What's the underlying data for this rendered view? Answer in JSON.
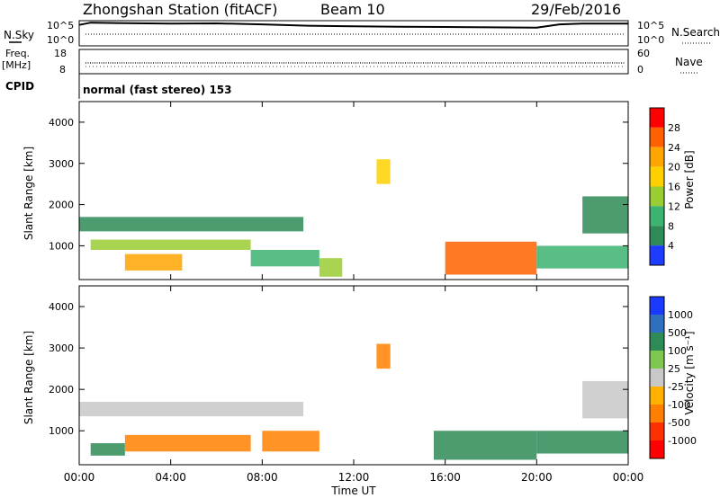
{
  "header": {
    "title": "Zhongshan Station (fitACF)",
    "beam": "Beam 10",
    "date": "29/Feb/2016"
  },
  "top_panels": {
    "nsky": {
      "label": "N.Sky",
      "ticks_left": [
        "10^5",
        "10^0"
      ],
      "ticks_right": [
        "10^5",
        "10^0"
      ],
      "right_label": "N.Search"
    },
    "freq": {
      "label_line1": "Freq.",
      "label_line2": "[MHz]",
      "ticks_left": [
        "18",
        "8"
      ],
      "ticks_right": [
        "60",
        "0"
      ],
      "right_label": "Nave"
    },
    "cpid": {
      "label": "CPID",
      "text": "normal (fast stereo) 153"
    }
  },
  "power_panel": {
    "ylabel": "Slant Range [km]",
    "yticks": [
      "4000",
      "3000",
      "2000",
      "1000"
    ],
    "colorbar_label": "Power [dB]",
    "colorbar_ticks": [
      "28",
      "24",
      "20",
      "16",
      "12",
      "8",
      "4"
    ],
    "colorbar_colors": [
      "#ff0000",
      "#ff6000",
      "#ffa500",
      "#ffd000",
      "#9acd32",
      "#3cb371",
      "#2e8b57",
      "#1e3cff"
    ]
  },
  "velocity_panel": {
    "ylabel": "Slant Range [km]",
    "yticks": [
      "4000",
      "3000",
      "2000",
      "1000"
    ],
    "colorbar_label": "Velocity [m s⁻¹]",
    "colorbar_ticks": [
      "1000",
      "500",
      "100",
      "25",
      "-25",
      "-100",
      "-500",
      "-1000"
    ],
    "colorbar_colors": [
      "#1a3aff",
      "#2f6fbf",
      "#2e8b57",
      "#7ec850",
      "#c8c8c8",
      "#ffb000",
      "#ff8000",
      "#ff3000",
      "#ff0000"
    ]
  },
  "xaxis": {
    "label": "Time UT",
    "ticks": [
      "00:00",
      "04:00",
      "08:00",
      "12:00",
      "16:00",
      "20:00",
      "00:00"
    ]
  },
  "chart_data": [
    {
      "type": "line",
      "name_label": "N.Sky",
      "x_unit": "hours UT",
      "y_scale": "log",
      "ylim": [
        1,
        100000
      ],
      "series": [
        {
          "x": [
            0,
            0.5,
            2,
            4,
            6,
            8,
            10,
            12,
            14,
            16,
            18,
            20,
            21,
            22,
            24
          ],
          "values": [
            30000,
            90000,
            70000,
            60000,
            65000,
            40000,
            20000,
            15000,
            12000,
            11000,
            9000,
            8000,
            40000,
            60000,
            60000
          ]
        }
      ]
    },
    {
      "type": "scatter",
      "name_label": "Freq.",
      "x_unit": "hours UT",
      "ylim": [
        8,
        18
      ],
      "series": [
        {
          "x": [
            0,
            4,
            8,
            12,
            16,
            20,
            24
          ],
          "values": [
            12,
            12,
            12,
            12,
            12,
            12,
            12
          ]
        }
      ]
    },
    {
      "type": "heatmap",
      "title": "Power [dB]",
      "xlabel": "Time UT",
      "ylabel": "Slant Range [km]",
      "xlim": [
        0,
        24
      ],
      "ylim": [
        180,
        4500
      ],
      "zlim": [
        0,
        30
      ],
      "regions": [
        {
          "t": [
            0,
            9.8
          ],
          "range": [
            1350,
            1700
          ],
          "value": 6
        },
        {
          "t": [
            0.5,
            7.5
          ],
          "range": [
            900,
            1150
          ],
          "value": 12
        },
        {
          "t": [
            2,
            4.5
          ],
          "range": [
            400,
            800
          ],
          "value": 22
        },
        {
          "t": [
            7.5,
            10.5
          ],
          "range": [
            500,
            900
          ],
          "value": 10
        },
        {
          "t": [
            10.5,
            11.5
          ],
          "range": [
            250,
            700
          ],
          "value": 14
        },
        {
          "t": [
            13,
            13.6
          ],
          "range": [
            2500,
            3100
          ],
          "value": 16
        },
        {
          "t": [
            16,
            20
          ],
          "range": [
            300,
            1100
          ],
          "value": 26
        },
        {
          "t": [
            20,
            24
          ],
          "range": [
            450,
            1000
          ],
          "value": 8
        },
        {
          "t": [
            22,
            24
          ],
          "range": [
            1300,
            2200
          ],
          "value": 6
        }
      ]
    },
    {
      "type": "heatmap",
      "title": "Velocity [m s⁻¹]",
      "xlabel": "Time UT",
      "ylabel": "Slant Range [km]",
      "xlim": [
        0,
        24
      ],
      "ylim": [
        180,
        4500
      ],
      "zlim": [
        -1000,
        1000
      ],
      "regions": [
        {
          "t": [
            0,
            9.8
          ],
          "range": [
            1350,
            1700
          ],
          "value": 0
        },
        {
          "t": [
            0.5,
            2
          ],
          "range": [
            400,
            700
          ],
          "value": 200
        },
        {
          "t": [
            2,
            7.5
          ],
          "range": [
            500,
            900
          ],
          "value": -150
        },
        {
          "t": [
            8,
            10.5
          ],
          "range": [
            500,
            1000
          ],
          "value": -200
        },
        {
          "t": [
            13,
            13.6
          ],
          "range": [
            2500,
            3100
          ],
          "value": -200
        },
        {
          "t": [
            15.5,
            20
          ],
          "range": [
            300,
            1000
          ],
          "value": 100
        },
        {
          "t": [
            20,
            24
          ],
          "range": [
            450,
            1000
          ],
          "value": 150
        },
        {
          "t": [
            22,
            24
          ],
          "range": [
            1300,
            2200
          ],
          "value": 0
        }
      ]
    }
  ]
}
